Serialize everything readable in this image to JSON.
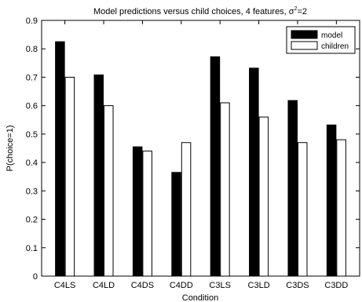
{
  "chart_data": {
    "type": "bar",
    "title": "Model predictions versus child choices, 4 features, σ²=2",
    "title_parts": {
      "main": "Model predictions versus child choices, 4 features, σ",
      "sup": "2",
      "tail": "=2"
    },
    "xlabel": "Condition",
    "ylabel": "P(choice=1)",
    "ylim": [
      0,
      0.9
    ],
    "yticks": [
      "0",
      "0.1",
      "0.2",
      "0.3",
      "0.4",
      "0.5",
      "0.6",
      "0.7",
      "0.8",
      "0.9"
    ],
    "categories": [
      "C4LS",
      "C4LD",
      "C4DS",
      "C4DD",
      "C3LS",
      "C3LD",
      "C3DS",
      "C3DD"
    ],
    "series": [
      {
        "name": "model",
        "color": "#000000",
        "values": [
          0.825,
          0.708,
          0.455,
          0.365,
          0.772,
          0.732,
          0.618,
          0.532
        ]
      },
      {
        "name": "children",
        "color": "#ffffff",
        "values": [
          0.7,
          0.6,
          0.44,
          0.47,
          0.61,
          0.56,
          0.47,
          0.48
        ]
      }
    ],
    "legend_position": "top-right",
    "grid": false
  }
}
